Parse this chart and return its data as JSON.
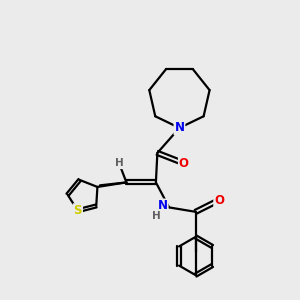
{
  "background_color": "#ebebeb",
  "figsize": [
    3.0,
    3.0
  ],
  "dpi": 100,
  "atom_colors": {
    "C": "#000000",
    "N": "#0000ee",
    "O": "#ee0000",
    "S": "#cccc00",
    "H": "#606060"
  },
  "bond_color": "#000000",
  "bond_width": 1.6,
  "font_size_atom": 8.5,
  "font_size_h": 7.5
}
